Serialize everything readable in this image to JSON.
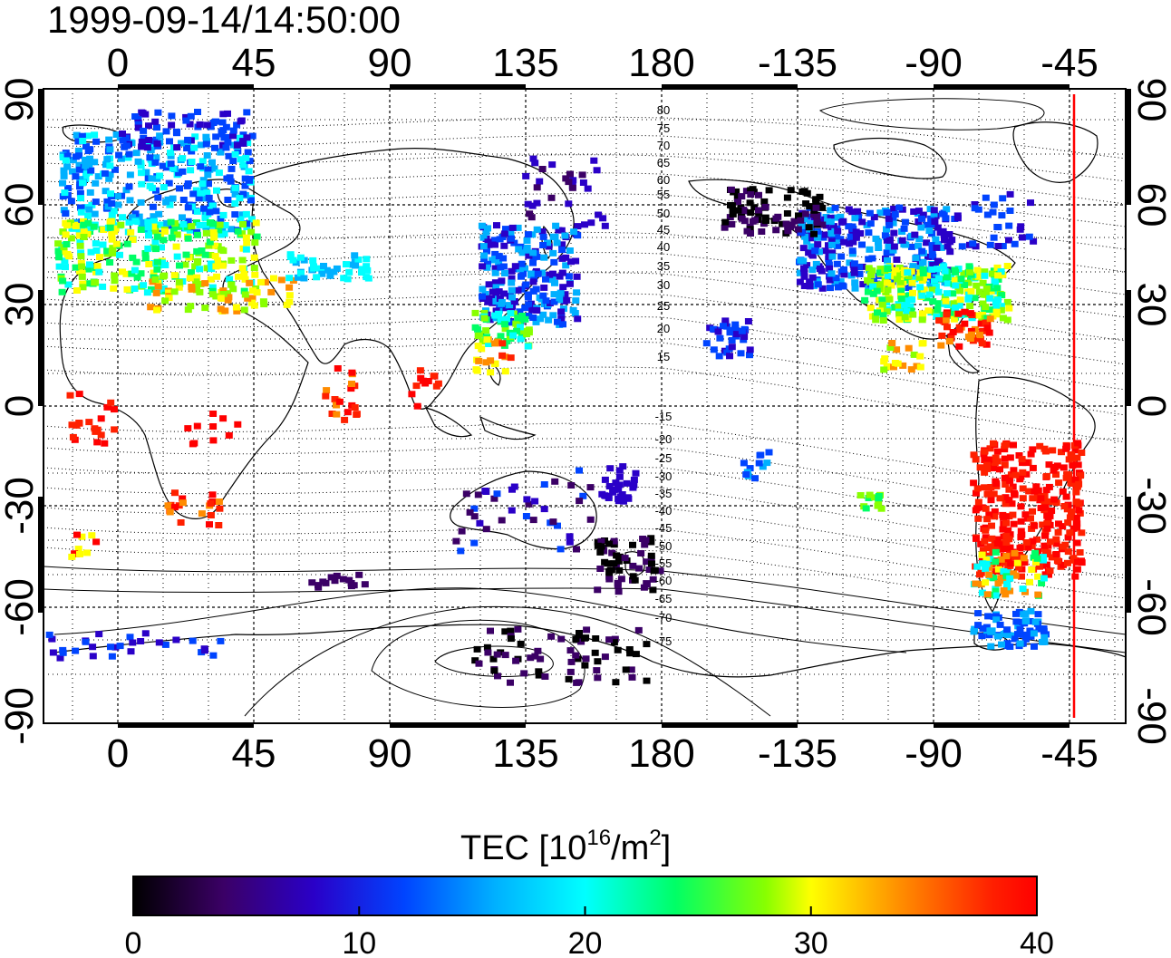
{
  "title": "1999-09-14/14:50:00",
  "map": {
    "lon_ticks": [
      "0",
      "45",
      "90",
      "135",
      "180",
      "-135",
      "-90",
      "-45"
    ],
    "lat_ticks": [
      "90",
      "60",
      "30",
      "0",
      "-30",
      "-60",
      "-90"
    ],
    "maglat_labels": [
      "80",
      "75",
      "70",
      "65",
      "60",
      "55",
      "50",
      "45",
      "40",
      "35",
      "30",
      "25",
      "20",
      "15",
      "-15",
      "-20",
      "-25",
      "-30",
      "-35",
      "-40",
      "-45",
      "-50",
      "-55",
      "-60",
      "-65",
      "-70",
      "-75"
    ],
    "terminator_color": "#ff0000"
  },
  "colorbar": {
    "label_main": "TEC  [10",
    "label_sup1": "16",
    "label_mid": "/m",
    "label_sup2": "2",
    "label_end": "]",
    "ticks": [
      "0",
      "10",
      "20",
      "30",
      "40"
    ],
    "colors": [
      "#000000",
      "#3b0066",
      "#2a00c8",
      "#0044ff",
      "#00b0ff",
      "#00ffff",
      "#00ff66",
      "#88ff00",
      "#ffff00",
      "#ff8c00",
      "#ff2000",
      "#ff0000"
    ]
  }
}
